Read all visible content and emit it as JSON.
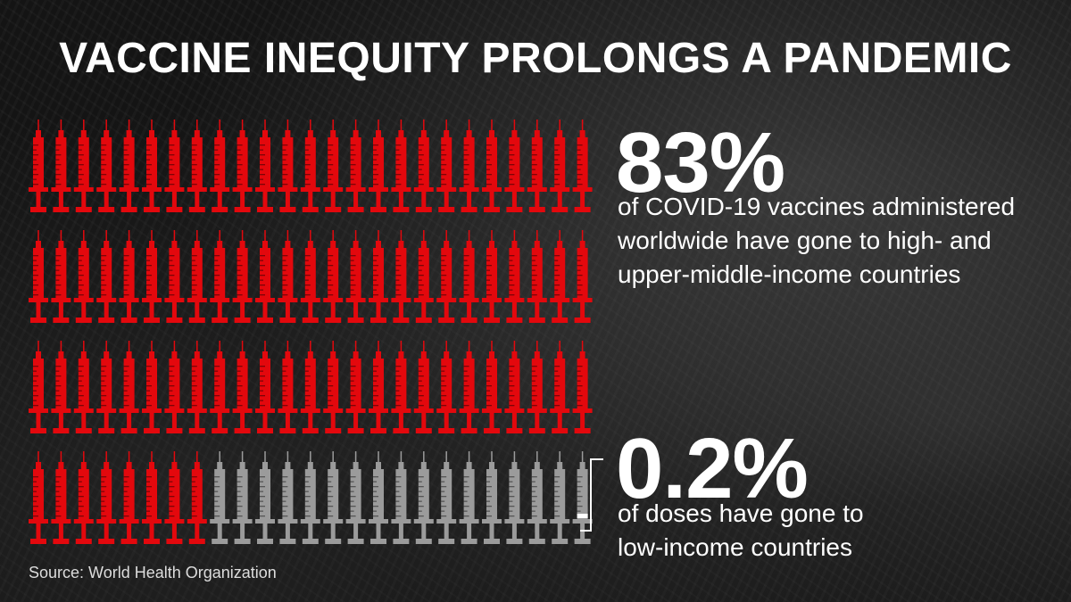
{
  "title": "VACCINE INEQUITY PROLONGS A PANDEMIC",
  "stat1": {
    "value": "83%",
    "description": "of COVID-19 vaccines administered\nworldwide have gone to high- and\nupper-middle-income countries"
  },
  "stat2": {
    "value": "0.2%",
    "description": "of doses have gone to\nlow-income countries"
  },
  "source": "Source: World Health Organization",
  "pictogram": {
    "rows": 4,
    "per_row": 25,
    "highlighted_count": 83,
    "icon": "syringe-icon",
    "colors": {
      "highlighted": "#e3080d",
      "other": "#9b9b9b",
      "small_mark": "#ffffff"
    }
  }
}
